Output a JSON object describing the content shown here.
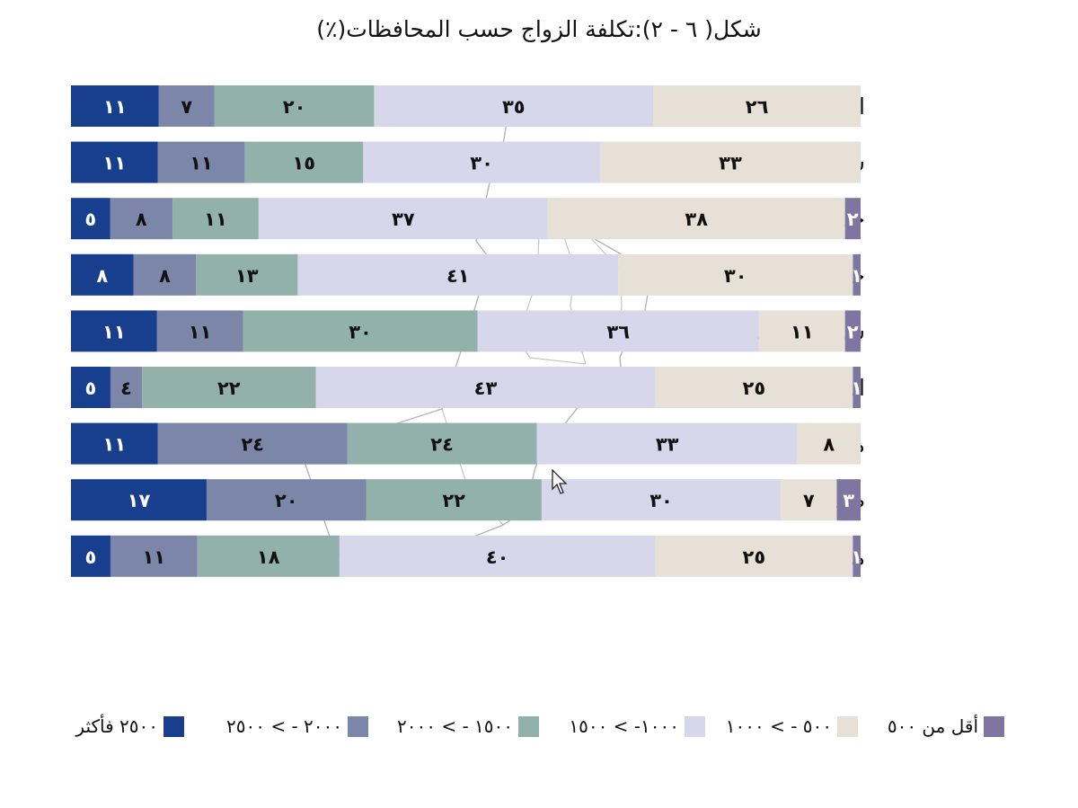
{
  "title": "شكل( ٦ - ٢):تكلفة الزواج حسب المحافظات(٪)",
  "colors": {
    "cat0": "#7e76a0",
    "cat1": "#e6e0d6",
    "cat2": "#d6d7ea",
    "cat3": "#93b1ab",
    "cat4": "#7b86a8",
    "cat5": "#173f8e",
    "label_dark": "#111111",
    "label_light": "#ffffff"
  },
  "legend": [
    {
      "label": "أقل من ٥٠٠"
    },
    {
      "label": "٥٠٠ - > ١٠٠٠"
    },
    {
      "label": "١٠٠٠- > ١٥٠٠"
    },
    {
      "label": "١٥٠٠ - > ٢٠٠٠"
    },
    {
      "label": "٢٠٠٠ - > ٢٥٠٠"
    },
    {
      "label": "٢٥٠٠ فأكثر"
    }
  ],
  "chart_data": {
    "type": "bar",
    "orientation": "horizontal",
    "stacked": "100%",
    "title": "شكل( ٦ - ٢):تكلفة الزواج حسب المحافظات(٪)",
    "categories": [
      "الظاهرة",
      "شمال الشرقية",
      "جنوب الشرقية",
      "جنوب الباطنة",
      "شمال الباطنة",
      "الداخلية",
      "مسندم والبريمي والوسطى",
      "ظفار",
      "مسقط"
    ],
    "series": [
      {
        "name": "أقل من ٥٠٠",
        "values": [
          0,
          0,
          2,
          1,
          2,
          1,
          0,
          3,
          1
        ],
        "labels": [
          "",
          "",
          "٢",
          "١",
          "٢",
          "١",
          "",
          "٣",
          "١"
        ]
      },
      {
        "name": "٥٠٠ - > ١٠٠٠",
        "values": [
          26,
          33,
          38,
          30,
          11,
          25,
          8,
          7,
          25
        ],
        "labels": [
          "٢٦",
          "٣٣",
          "٣٨",
          "٣٠",
          "١١",
          "٢٥",
          "٨",
          "٧",
          "٢٥"
        ]
      },
      {
        "name": "١٠٠٠- > ١٥٠٠",
        "values": [
          35,
          30,
          37,
          41,
          36,
          43,
          33,
          30,
          40
        ],
        "labels": [
          "٣٥",
          "٣٠",
          "٣٧",
          "٤١",
          "٣٦",
          "٤٣",
          "٣٣",
          "٣٠",
          "٤٠"
        ]
      },
      {
        "name": "١٥٠٠ - > ٢٠٠٠",
        "values": [
          20,
          15,
          11,
          13,
          30,
          22,
          24,
          22,
          18
        ],
        "labels": [
          "٢٠",
          "١٥",
          "١١",
          "١٣",
          "٣٠",
          "٢٢",
          "٢٤",
          "٢٢",
          "١٨"
        ]
      },
      {
        "name": "٢٠٠٠ - > ٢٥٠٠",
        "values": [
          7,
          11,
          8,
          8,
          11,
          4,
          24,
          20,
          11
        ],
        "labels": [
          "٧",
          "١١",
          "٨",
          "٨",
          "١١",
          "٤",
          "٢٤",
          "٢٠",
          "١١"
        ]
      },
      {
        "name": "٢٥٠٠ فأكثر",
        "values": [
          11,
          11,
          5,
          8,
          11,
          5,
          11,
          17,
          5
        ],
        "labels": [
          "١١",
          "١١",
          "٥",
          "٨",
          "١١",
          "٥",
          "١١",
          "١٧",
          "٥"
        ]
      }
    ],
    "xlim": [
      0,
      100
    ],
    "grid": false,
    "legend_position": "bottom"
  }
}
